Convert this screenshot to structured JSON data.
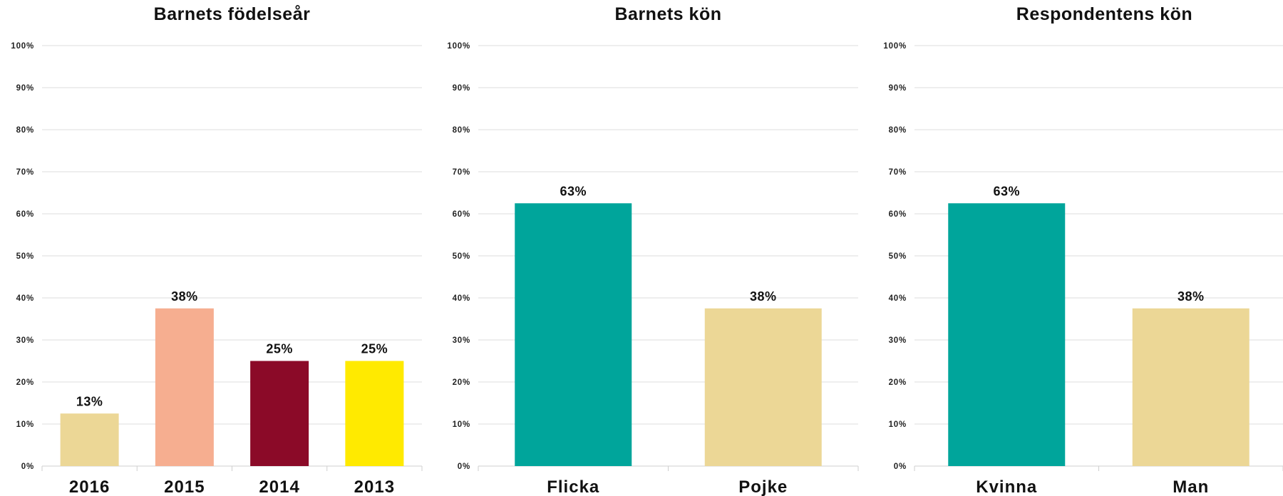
{
  "chart_data": [
    {
      "type": "bar",
      "title": "Barnets födelseår",
      "categories": [
        "2016",
        "2015",
        "2014",
        "2013"
      ],
      "values": [
        12.5,
        37.5,
        25,
        25
      ],
      "data_labels": [
        "13%",
        "38%",
        "25%",
        "25%"
      ],
      "colors": [
        "#ecd796",
        "#f6ae90",
        "#8b0a28",
        "#ffea00"
      ],
      "ylim": [
        0,
        100
      ],
      "yticks": [
        "0%",
        "10%",
        "20%",
        "30%",
        "40%",
        "50%",
        "60%",
        "70%",
        "80%",
        "90%",
        "100%"
      ],
      "grid": true
    },
    {
      "type": "bar",
      "title": "Barnets kön",
      "categories": [
        "Flicka",
        "Pojke"
      ],
      "values": [
        62.5,
        37.5
      ],
      "data_labels": [
        "63%",
        "38%"
      ],
      "colors": [
        "#00a59b",
        "#ecd796"
      ],
      "ylim": [
        0,
        100
      ],
      "yticks": [
        "0%",
        "10%",
        "20%",
        "30%",
        "40%",
        "50%",
        "60%",
        "70%",
        "80%",
        "90%",
        "100%"
      ],
      "grid": true
    },
    {
      "type": "bar",
      "title": "Respondentens kön",
      "categories": [
        "Kvinna",
        "Man"
      ],
      "values": [
        62.5,
        37.5
      ],
      "data_labels": [
        "63%",
        "38%"
      ],
      "colors": [
        "#00a59b",
        "#ecd796"
      ],
      "ylim": [
        0,
        100
      ],
      "yticks": [
        "0%",
        "10%",
        "20%",
        "30%",
        "40%",
        "50%",
        "60%",
        "70%",
        "80%",
        "90%",
        "100%"
      ],
      "grid": true
    }
  ]
}
